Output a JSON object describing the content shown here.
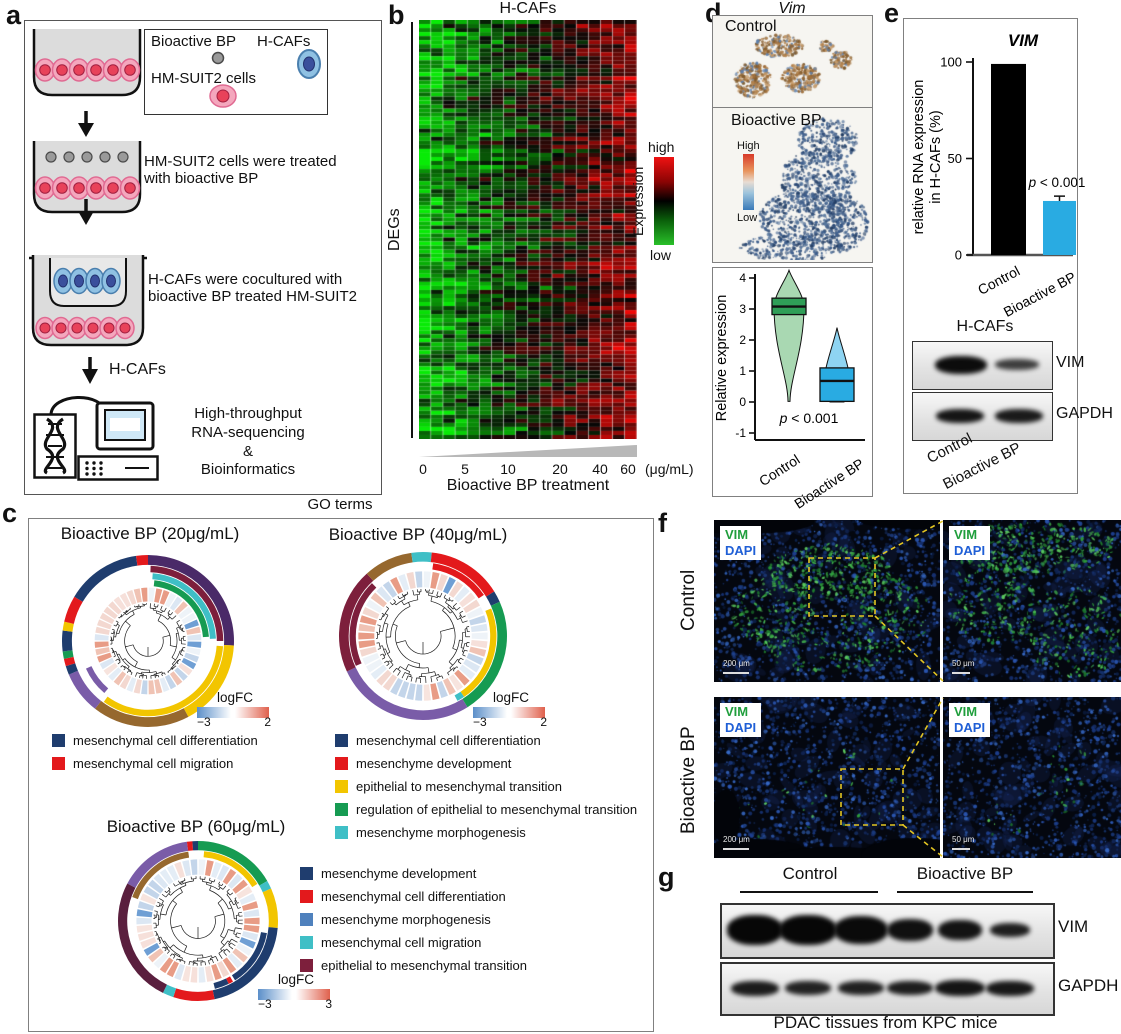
{
  "panel_a": {
    "label": "a",
    "legend_box": {
      "item1_label": "Bioactive BP",
      "item2_label": "H-CAFs",
      "item3_label": "HM-SUIT2 cells"
    },
    "step2_text": "HM-SUIT2 cells were treated with bioactive BP",
    "step3_text": "H-CAFs were cocultured with bioactive BP treated HM-SUIT2",
    "hcafs_arrow_label": "H-CAFs",
    "output_lines": [
      "High-throughput",
      "RNA-sequencing",
      "&",
      "Bioinformatics"
    ]
  },
  "panel_b": {
    "label": "b",
    "title": "H-CAFs",
    "row_label": "DEGs",
    "colorbar": {
      "label": "Expression",
      "top": "high",
      "bottom": "low"
    },
    "x_unit": "(μg/mL)",
    "x_title": "Bioactive BP treatment"
  },
  "panel_c": {
    "label": "c",
    "title": "GO terms"
  },
  "panel_d": {
    "label": "d",
    "title": "Vim",
    "control_label": "Control",
    "treated_label": "Bioactive BP",
    "colorbar": {
      "top": "High",
      "bottom": "Low"
    }
  },
  "panel_e": {
    "label": "e",
    "blot_title": "H-CAFs",
    "band1": "VIM",
    "band2": "GAPDH",
    "lane1": "Control",
    "lane2": "Bioactive BP"
  },
  "panel_f": {
    "label": "f",
    "rows": [
      {
        "side": "Control",
        "marker1": "VIM",
        "marker2": "DAPI",
        "scale_main": "200 μm",
        "scale_zoom": "50 μm"
      },
      {
        "side": "Bioactive BP",
        "marker1": "VIM",
        "marker2": "DAPI",
        "scale_main": "200 μm",
        "scale_zoom": "50 μm"
      }
    ]
  },
  "panel_g": {
    "label": "g",
    "group1": "Control",
    "group2": "Bioactive BP",
    "band1": "VIM",
    "band2": "GAPDH",
    "caption": "PDAC tissues from KPC mice"
  },
  "chart_data": [
    {
      "id": "heatmap_b",
      "type": "heatmap",
      "title": "H-CAFs",
      "rows_label": "DEGs",
      "x_categories": [
        "0",
        "5",
        "10",
        "20",
        "40",
        "60"
      ],
      "x_unit": "(μg/mL)",
      "x_title": "Bioactive BP treatment",
      "colorscale": {
        "low": "#22bb22",
        "mid": "#000000",
        "high": "#e80000"
      },
      "legend": {
        "label": "Expression",
        "top": "high",
        "bottom": "low"
      },
      "n_cols": 18,
      "n_rows": 104,
      "description": "DEGs in H-CAFs across increasing bioactive BP dose; expression shifts from green(low) at 0 μg/mL columns to red(high) at 60 μg/mL columns"
    },
    {
      "id": "violin_d",
      "type": "violin",
      "ylabel": "Relative expression",
      "ylim": [
        -1,
        4
      ],
      "yticks": [
        -1,
        0,
        1,
        2,
        3,
        4
      ],
      "p_label": "p < 0.001",
      "groups": [
        {
          "name": "Control",
          "box_color": "#2f9e57",
          "fill": "#a9d8b2",
          "median": 3.08,
          "q1": 2.82,
          "q3": 3.35,
          "whisker_low": 0.02,
          "whisker_high": 4.25
        },
        {
          "name": "Bioactive BP",
          "box_color": "#29abe2",
          "fill": "#8ed4f2",
          "median": 0.68,
          "q1": 0.02,
          "q3": 1.1,
          "whisker_low": 0,
          "whisker_high": 2.4
        }
      ]
    },
    {
      "id": "bar_e",
      "type": "bar",
      "title": "VIM",
      "ylabel": [
        "relative RNA expression",
        "in H-CAFs (%)"
      ],
      "yticks": [
        0,
        50,
        100
      ],
      "ylim": [
        0,
        100
      ],
      "p_label": "p < 0.001",
      "bars": [
        {
          "name": "Control",
          "value": 99,
          "color": "#000000"
        },
        {
          "name": "Bioactive BP",
          "value": 28,
          "error": 2.5,
          "color": "#29abe2"
        }
      ]
    },
    {
      "id": "go_20",
      "type": "circular_dendrogram",
      "title": "Bioactive BP (20μg/mL)",
      "logfc": {
        "label": "logFC",
        "min": "−3",
        "max": "2"
      },
      "legend": [
        {
          "color": "#1f3d6e",
          "label": "mesenchymal cell differentiation"
        },
        {
          "color": "#e3191c",
          "label": "mesenchymal cell migration"
        }
      ],
      "rings": [
        {
          "r0": 0.885,
          "r1": 1.0,
          "segs": [
            [
              0,
              93,
              "#4a2a68"
            ],
            [
              93,
              152,
              "#f2c500"
            ],
            [
              152,
              218,
              "#96682e"
            ],
            [
              218,
              247,
              "#7a5ca8"
            ],
            [
              247,
              253,
              "#1f3d6e"
            ],
            [
              253,
              258,
              "#e3191c"
            ],
            [
              258,
              263,
              "#169b52"
            ],
            [
              263,
              277,
              "#1f3d6e"
            ],
            [
              277,
              283,
              "#f2c500"
            ],
            [
              283,
              301,
              "#e3191c"
            ],
            [
              301,
              352,
              "#1f3d6e"
            ],
            [
              352,
              360,
              "#e3191c"
            ]
          ]
        },
        {
          "r0": 0.8,
          "r1": 0.875,
          "segs": [
            [
              2,
              90,
              "#7d1f3c"
            ],
            [
              94,
              216,
              "#f2c500"
            ]
          ]
        },
        {
          "r0": 0.72,
          "r1": 0.79,
          "segs": [
            [
              4,
              88,
              "#3fbfc6"
            ],
            [
              220,
              246,
              "#7a5ca8"
            ]
          ]
        },
        {
          "r0": 0.64,
          "r1": 0.71,
          "segs": [
            [
              6,
              86,
              "#169b52"
            ]
          ]
        }
      ],
      "tiles": {
        "r0": 0.46,
        "r1": 0.62,
        "n": 44
      },
      "dendro": {
        "leaf": 0.44,
        "seed": 11
      }
    },
    {
      "id": "go_40",
      "type": "circular_dendrogram",
      "title": "Bioactive BP (40μg/mL)",
      "logfc": {
        "label": "logFC",
        "min": "−3",
        "max": "2"
      },
      "legend": [
        {
          "color": "#1f3d6e",
          "label": "mesenchymal cell differentiation"
        },
        {
          "color": "#e3191c",
          "label": "mesenchyme development"
        },
        {
          "color": "#f2c500",
          "label": "epithelial to mesenchymal transition"
        },
        {
          "color": "#169b52",
          "label": "regulation of epithelial to mesenchymal transition"
        },
        {
          "color": "#3fbfc6",
          "label": "mesenchyme morphogenesis"
        }
      ],
      "rings": [
        {
          "r0": 0.885,
          "r1": 1.0,
          "segs": [
            [
              0,
              6,
              "#3fbfc6"
            ],
            [
              6,
              58,
              "#e3191c"
            ],
            [
              58,
              66,
              "#1f3d6e"
            ],
            [
              66,
              148,
              "#169b52"
            ],
            [
              148,
              245,
              "#7a5ca8"
            ],
            [
              245,
              318,
              "#7d1f3c"
            ],
            [
              318,
              352,
              "#96682e"
            ],
            [
              352,
              360,
              "#3fbfc6"
            ]
          ]
        },
        {
          "r0": 0.8,
          "r1": 0.875,
          "segs": [
            [
              8,
              56,
              "#e3191c"
            ],
            [
              68,
              146,
              "#f2c500"
            ],
            [
              146,
              152,
              "#3fbfc6"
            ],
            [
              246,
              316,
              "#7d1f3c"
            ]
          ]
        }
      ],
      "tiles": {
        "r0": 0.58,
        "r1": 0.77,
        "n": 46
      },
      "dendro": {
        "leaf": 0.56,
        "seed": 22
      }
    },
    {
      "id": "go_60",
      "type": "circular_dendrogram",
      "title": "Bioactive BP (60μg/mL)",
      "logfc": {
        "label": "logFC",
        "min": "−3",
        "max": "3"
      },
      "legend": [
        {
          "color": "#1f3d6e",
          "label": "mesenchyme development"
        },
        {
          "color": "#e3191c",
          "label": "mesenchymal cell differentiation"
        },
        {
          "color": "#4f81bd",
          "label": "mesenchyme morphogenesis"
        },
        {
          "color": "#3fbfc6",
          "label": "mesenchymal cell migration"
        },
        {
          "color": "#7d1f3c",
          "label": "epithelial to mesenchymal transition"
        }
      ],
      "rings": [
        {
          "r0": 0.885,
          "r1": 1.0,
          "segs": [
            [
              0,
              60,
              "#169b52"
            ],
            [
              60,
              66,
              "#3fbfc6"
            ],
            [
              66,
              95,
              "#f2c500"
            ],
            [
              95,
              168,
              "#1f3d6e"
            ],
            [
              168,
              198,
              "#e3191c"
            ],
            [
              198,
              206,
              "#3fbfc6"
            ],
            [
              206,
              298,
              "#5a1f3e"
            ],
            [
              298,
              352,
              "#7a5ca8"
            ],
            [
              352,
              356,
              "#e3191c"
            ],
            [
              356,
              360,
              "#1f3d6e"
            ]
          ]
        },
        {
          "r0": 0.8,
          "r1": 0.875,
          "segs": [
            [
              5,
              58,
              "#f2c500"
            ],
            [
              100,
              148,
              "#1f3d6e"
            ],
            [
              150,
              154,
              "#e3191c"
            ],
            [
              154,
              166,
              "#1f3d6e"
            ],
            [
              290,
              352,
              "#96682e"
            ]
          ]
        }
      ],
      "tiles": {
        "r0": 0.58,
        "r1": 0.77,
        "n": 46
      },
      "dendro": {
        "leaf": 0.56,
        "seed": 33
      }
    }
  ]
}
